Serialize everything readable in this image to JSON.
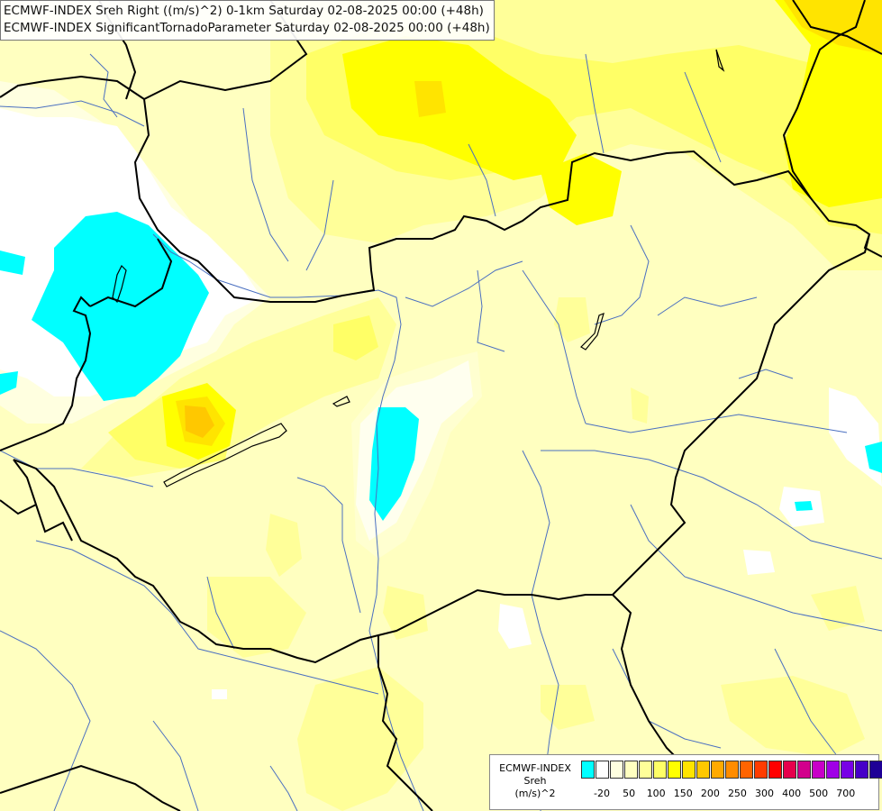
{
  "header": {
    "line1": "ECMWF-INDEX Sreh Right ((m/s)^2) 0-1km Saturday 02-08-2025 00:00 (+48h)",
    "line2": "ECMWF-INDEX SignificantTornadoParameter Saturday 02-08-2025 00:00 (+48h)"
  },
  "legend": {
    "line1": "ECMWF-INDEX",
    "line2": "Sreh",
    "line3": "(m/s)^2",
    "colors": [
      "#00ffff",
      "#ffffff",
      "#ffffe0",
      "#ffffc0",
      "#ffff99",
      "#ffff66",
      "#ffff00",
      "#ffe400",
      "#ffc800",
      "#ffaa00",
      "#ff8c00",
      "#ff6400",
      "#ff3c00",
      "#ff0000",
      "#e6004c",
      "#d2008c",
      "#c800c8",
      "#a000e6",
      "#7800e6",
      "#4600c8",
      "#1e0096",
      "#000078"
    ],
    "ticks": [
      {
        "label": "-20",
        "index": 1
      },
      {
        "label": "50",
        "index": 3
      },
      {
        "label": "100",
        "index": 5
      },
      {
        "label": "150",
        "index": 7
      },
      {
        "label": "200",
        "index": 9
      },
      {
        "label": "250",
        "index": 11
      },
      {
        "label": "300",
        "index": 13
      },
      {
        "label": "400",
        "index": 15
      },
      {
        "label": "500",
        "index": 17
      },
      {
        "label": "700",
        "index": 19
      }
    ]
  }
}
